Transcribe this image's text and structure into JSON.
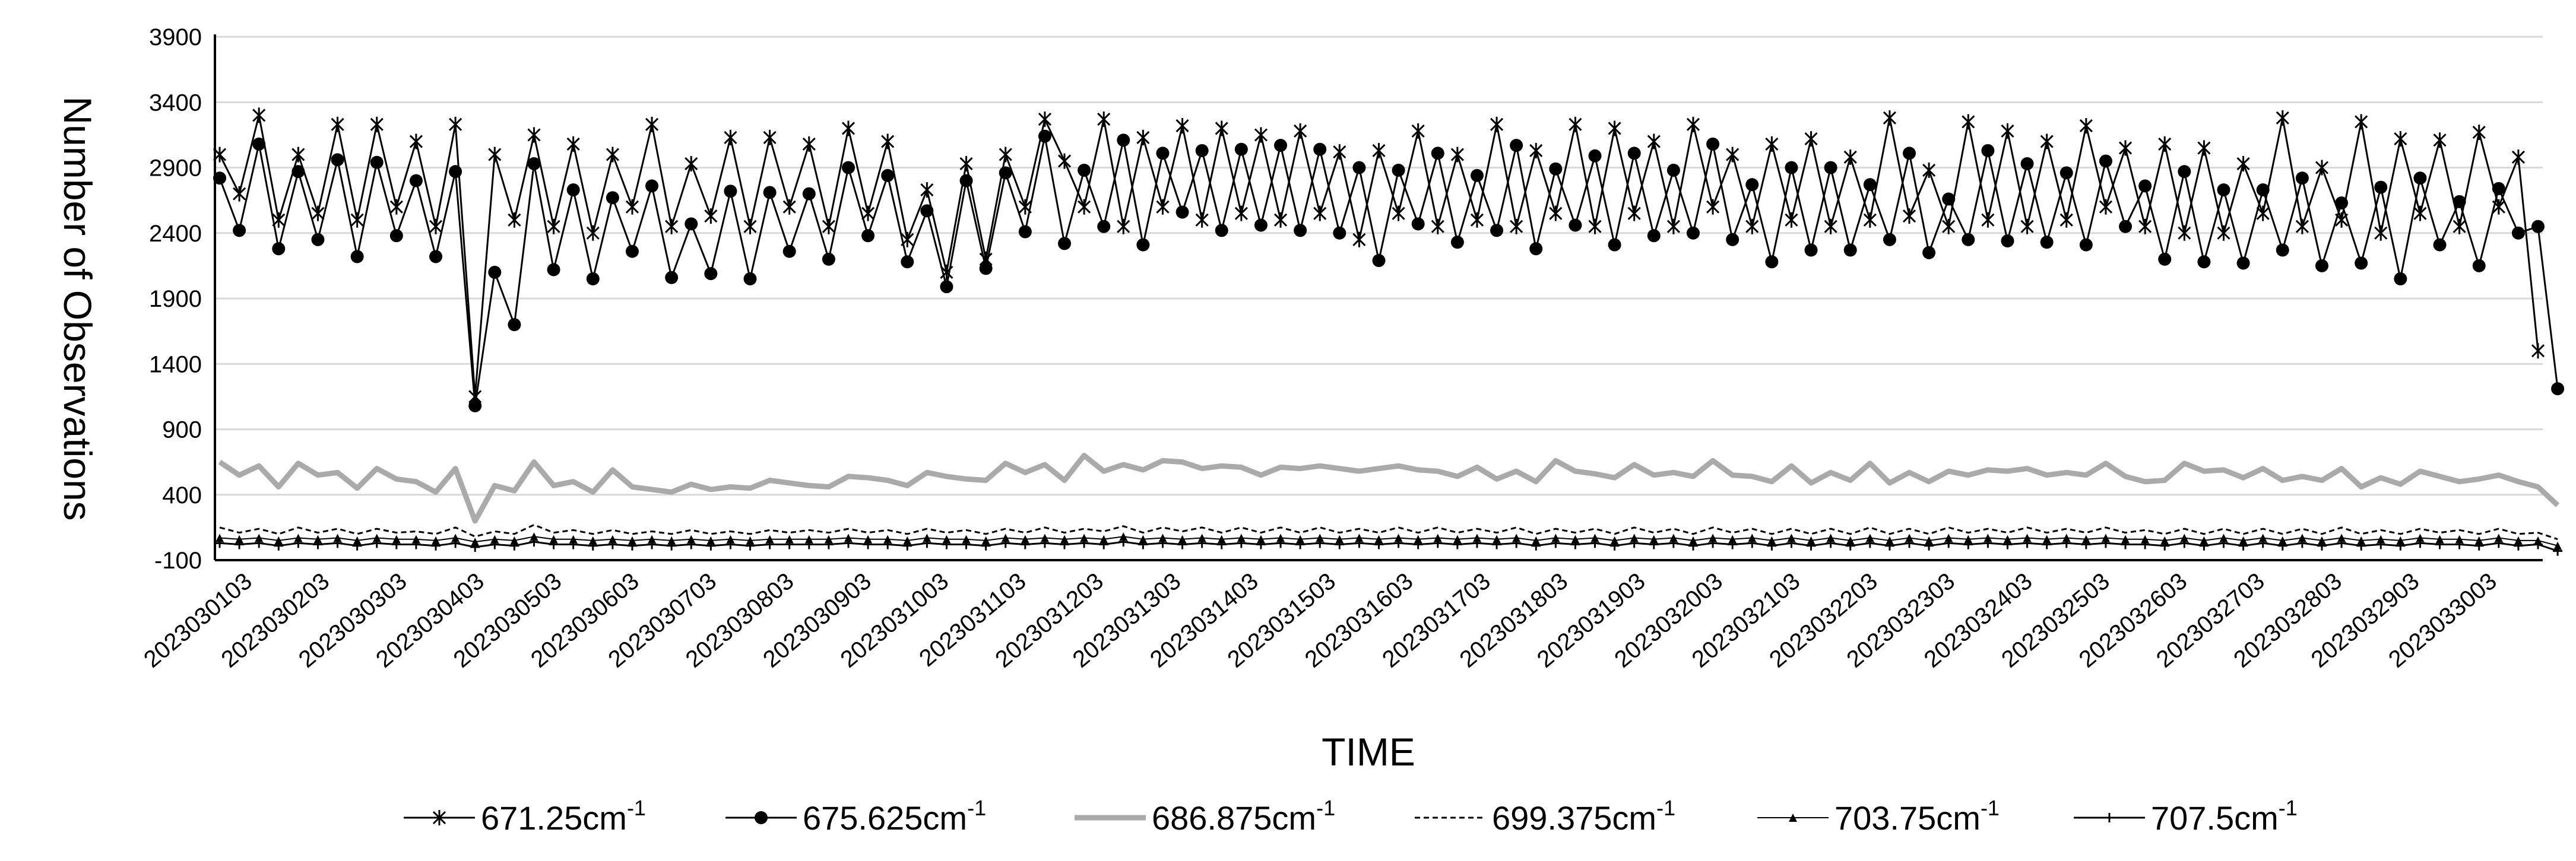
{
  "chart_data": {
    "type": "line",
    "xlabel": "TIME",
    "ylabel": "Number of Observations",
    "ylim": [
      -100,
      3900
    ],
    "yticks": [
      -100,
      400,
      900,
      1400,
      1900,
      2400,
      2900,
      3400,
      3900
    ],
    "grid": "horizontal",
    "legend_position": "bottom",
    "x_tick_labels": [
      "2023030103",
      "2023030203",
      "2023030303",
      "2023030403",
      "2023030503",
      "2023030603",
      "2023030703",
      "2023030803",
      "2023030903",
      "2023031003",
      "2023031103",
      "2023031203",
      "2023031303",
      "2023031403",
      "2023031503",
      "2023031603",
      "2023031703",
      "2023031803",
      "2023031903",
      "2023032003",
      "2023032103",
      "2023032203",
      "2023032303",
      "2023032403",
      "2023032503",
      "2023032603",
      "2023032703",
      "2023032803",
      "2023032903",
      "2023033003"
    ],
    "series": [
      {
        "name": "671.25cm",
        "sup": "-1",
        "color": "#000000",
        "style": "solid",
        "marker": "x",
        "values": [
          3000,
          2700,
          3300,
          2500,
          3000,
          2550,
          3230,
          2500,
          3230,
          2600,
          3100,
          2450,
          3230,
          1150,
          3000,
          2500,
          3150,
          2450,
          3080,
          2400,
          3000,
          2600,
          3230,
          2450,
          2930,
          2530,
          3130,
          2450,
          3130,
          2600,
          3080,
          2450,
          3200,
          2550,
          3100,
          2350,
          2730,
          2100,
          2930,
          2200,
          3000,
          2600,
          3270,
          2950,
          2600,
          3270,
          2450,
          3130,
          2600,
          3220,
          2500,
          3200,
          2550,
          3150,
          2500,
          3180,
          2550,
          3020,
          2350,
          3030,
          2550,
          3180,
          2450,
          3000,
          2500,
          3230,
          2450,
          3030,
          2550,
          3230,
          2450,
          3200,
          2550,
          3100,
          2450,
          3230,
          2600,
          3000,
          2450,
          3080,
          2500,
          3120,
          2450,
          2980,
          2500,
          3280,
          2530,
          2880,
          2450,
          3250,
          2500,
          3180,
          2450,
          3100,
          2500,
          3220,
          2600,
          3050,
          2450,
          3080,
          2400,
          3050,
          2400,
          2930,
          2550,
          3280,
          2450,
          2900,
          2500,
          3250,
          2400,
          3120,
          2550,
          3110,
          2450,
          3170,
          2600,
          2980,
          1500
        ]
      },
      {
        "name": "675.625cm",
        "sup": "-1",
        "color": "#000000",
        "style": "solid",
        "marker": "circle",
        "values": [
          2820,
          2420,
          3080,
          2280,
          2870,
          2350,
          2960,
          2220,
          2940,
          2380,
          2800,
          2220,
          2870,
          1080,
          2100,
          1700,
          2930,
          2120,
          2730,
          2050,
          2670,
          2260,
          2760,
          2060,
          2470,
          2090,
          2720,
          2050,
          2710,
          2260,
          2700,
          2200,
          2900,
          2380,
          2840,
          2180,
          2570,
          1990,
          2800,
          2130,
          2860,
          2410,
          3140,
          2320,
          2880,
          2450,
          3110,
          2310,
          3010,
          2560,
          3030,
          2420,
          3040,
          2460,
          3070,
          2420,
          3040,
          2400,
          2900,
          2190,
          2880,
          2470,
          3010,
          2330,
          2840,
          2420,
          3070,
          2280,
          2890,
          2460,
          2990,
          2310,
          3010,
          2380,
          2880,
          2400,
          3080,
          2350,
          2770,
          2180,
          2900,
          2270,
          2900,
          2270,
          2770,
          2350,
          3010,
          2250,
          2660,
          2350,
          3030,
          2340,
          2930,
          2330,
          2860,
          2310,
          2950,
          2450,
          2760,
          2200,
          2870,
          2180,
          2730,
          2170,
          2730,
          2270,
          2820,
          2150,
          2630,
          2170,
          2750,
          2050,
          2820,
          2310,
          2640,
          2150,
          2740,
          2400,
          2450,
          1210
        ]
      },
      {
        "name": "686.875cm",
        "sup": "-1",
        "color": "#aaaaaa",
        "style": "thick",
        "marker": "none",
        "values": [
          650,
          550,
          620,
          460,
          640,
          550,
          570,
          450,
          600,
          520,
          500,
          420,
          600,
          200,
          470,
          430,
          650,
          470,
          500,
          420,
          590,
          460,
          440,
          420,
          480,
          440,
          460,
          450,
          510,
          490,
          470,
          460,
          540,
          530,
          510,
          470,
          570,
          540,
          520,
          510,
          640,
          570,
          630,
          510,
          700,
          580,
          630,
          590,
          660,
          650,
          600,
          620,
          610,
          550,
          610,
          600,
          620,
          600,
          580,
          600,
          620,
          590,
          580,
          540,
          610,
          520,
          580,
          500,
          660,
          580,
          560,
          530,
          630,
          550,
          570,
          540,
          660,
          550,
          540,
          500,
          620,
          490,
          570,
          510,
          640,
          490,
          570,
          500,
          580,
          550,
          590,
          580,
          600,
          550,
          570,
          550,
          640,
          540,
          500,
          510,
          640,
          580,
          590,
          530,
          600,
          510,
          540,
          510,
          600,
          460,
          530,
          480,
          580,
          540,
          500,
          520,
          550,
          500,
          460,
          320
        ]
      },
      {
        "name": "699.375cm",
        "sup": "-1",
        "color": "#000000",
        "style": "dashed",
        "marker": "none",
        "values": [
          150,
          110,
          140,
          100,
          150,
          110,
          140,
          100,
          140,
          110,
          120,
          100,
          150,
          80,
          120,
          100,
          170,
          110,
          130,
          100,
          130,
          100,
          120,
          100,
          130,
          100,
          120,
          100,
          130,
          110,
          130,
          110,
          140,
          110,
          130,
          100,
          140,
          110,
          130,
          100,
          140,
          110,
          150,
          110,
          140,
          120,
          160,
          110,
          150,
          120,
          150,
          110,
          150,
          110,
          150,
          110,
          150,
          110,
          140,
          110,
          150,
          110,
          150,
          110,
          140,
          110,
          150,
          100,
          140,
          110,
          140,
          100,
          150,
          110,
          140,
          100,
          150,
          110,
          140,
          100,
          140,
          100,
          140,
          100,
          150,
          100,
          140,
          100,
          150,
          110,
          140,
          110,
          150,
          110,
          140,
          110,
          150,
          110,
          130,
          100,
          140,
          100,
          140,
          100,
          140,
          100,
          140,
          100,
          150,
          100,
          130,
          100,
          140,
          110,
          130,
          100,
          140,
          100,
          110,
          60
        ]
      },
      {
        "name": "703.75cm",
        "sup": "-1",
        "color": "#000000",
        "style": "thin",
        "marker": "triangle",
        "values": [
          70,
          60,
          70,
          50,
          70,
          60,
          70,
          50,
          70,
          60,
          60,
          50,
          70,
          40,
          60,
          50,
          80,
          60,
          60,
          50,
          60,
          50,
          60,
          50,
          60,
          50,
          60,
          50,
          60,
          60,
          60,
          60,
          70,
          60,
          60,
          50,
          70,
          60,
          60,
          50,
          70,
          60,
          70,
          60,
          70,
          60,
          80,
          60,
          70,
          60,
          70,
          60,
          70,
          60,
          70,
          60,
          70,
          60,
          70,
          60,
          70,
          60,
          70,
          60,
          70,
          60,
          70,
          50,
          70,
          60,
          70,
          50,
          70,
          60,
          70,
          50,
          70,
          60,
          70,
          50,
          70,
          50,
          70,
          50,
          70,
          50,
          70,
          50,
          70,
          60,
          70,
          60,
          70,
          60,
          70,
          60,
          70,
          60,
          60,
          50,
          70,
          50,
          70,
          50,
          70,
          50,
          70,
          50,
          70,
          50,
          60,
          50,
          70,
          60,
          60,
          50,
          70,
          50,
          50,
          10
        ]
      },
      {
        "name": "707.5cm",
        "sup": "-1",
        "color": "#000000",
        "style": "solid",
        "marker": "plus",
        "values": [
          30,
          20,
          30,
          10,
          30,
          20,
          30,
          10,
          30,
          20,
          20,
          10,
          30,
          0,
          20,
          10,
          40,
          20,
          20,
          10,
          20,
          10,
          20,
          10,
          20,
          10,
          20,
          10,
          20,
          20,
          20,
          20,
          30,
          20,
          20,
          10,
          30,
          20,
          20,
          10,
          30,
          20,
          30,
          20,
          30,
          20,
          40,
          20,
          30,
          20,
          30,
          20,
          30,
          20,
          30,
          20,
          30,
          20,
          30,
          20,
          30,
          20,
          30,
          20,
          30,
          20,
          30,
          10,
          30,
          20,
          30,
          10,
          30,
          20,
          30,
          10,
          30,
          20,
          30,
          10,
          30,
          10,
          30,
          10,
          30,
          10,
          30,
          10,
          30,
          20,
          30,
          20,
          30,
          20,
          30,
          20,
          30,
          20,
          20,
          10,
          30,
          10,
          30,
          10,
          30,
          10,
          30,
          10,
          30,
          10,
          20,
          10,
          30,
          20,
          20,
          10,
          30,
          10,
          20,
          -30
        ]
      }
    ]
  }
}
